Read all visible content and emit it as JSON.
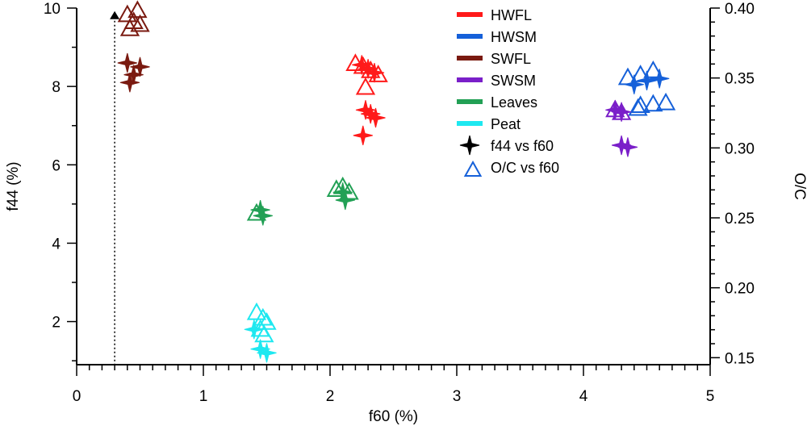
{
  "chart_data": {
    "type": "scatter",
    "xlabel": "f60 (%)",
    "ylabel": "f44 (%)",
    "y2label": "O/C",
    "xlim": [
      0,
      5
    ],
    "ylim": [
      0.9,
      10
    ],
    "y2lim": [
      0.145,
      0.4
    ],
    "xticks": [
      0,
      1,
      2,
      3,
      4,
      5
    ],
    "yticks": [
      2,
      4,
      6,
      8,
      10
    ],
    "y2ticks": [
      0.15,
      0.2,
      0.25,
      0.3,
      0.35,
      0.4
    ],
    "y2tick_labels": [
      "0.15",
      "0.20",
      "0.25",
      "0.30",
      "0.35",
      "0.40"
    ],
    "grid": false,
    "legend_position": "top-right",
    "reference_line": {
      "x": 0.3,
      "y_top": 9.8,
      "style": "dotted"
    },
    "series": [
      {
        "name": "HWFL",
        "color": "#ff1a1a",
        "f44_vs_f60": [
          [
            2.25,
            8.55
          ],
          [
            2.3,
            8.45
          ],
          [
            2.35,
            8.35
          ],
          [
            2.28,
            7.4
          ],
          [
            2.32,
            7.3
          ],
          [
            2.36,
            7.2
          ],
          [
            2.26,
            6.75
          ]
        ],
        "oc_vs_f60": [
          [
            2.2,
            0.36
          ],
          [
            2.26,
            0.358
          ],
          [
            2.32,
            0.355
          ],
          [
            2.38,
            0.352
          ],
          [
            2.28,
            0.343
          ]
        ]
      },
      {
        "name": "HWSM",
        "color": "#1560d9",
        "f44_vs_f60": [
          [
            4.4,
            8.05
          ],
          [
            4.5,
            8.15
          ],
          [
            4.6,
            8.2
          ]
        ],
        "oc_vs_f60": [
          [
            4.35,
            0.35
          ],
          [
            4.45,
            0.352
          ],
          [
            4.55,
            0.355
          ],
          [
            4.45,
            0.33
          ],
          [
            4.55,
            0.331
          ],
          [
            4.65,
            0.332
          ],
          [
            4.43,
            0.328
          ]
        ]
      },
      {
        "name": "SWFL",
        "color": "#7a1a10",
        "f44_vs_f60": [
          [
            0.4,
            8.6
          ],
          [
            0.45,
            8.3
          ],
          [
            0.5,
            8.5
          ],
          [
            0.42,
            8.1
          ]
        ],
        "oc_vs_f60": [
          [
            0.4,
            0.395
          ],
          [
            0.45,
            0.39
          ],
          [
            0.5,
            0.388
          ],
          [
            0.42,
            0.385
          ],
          [
            0.48,
            0.398
          ]
        ]
      },
      {
        "name": "SWSM",
        "color": "#7a1fc9",
        "f44_vs_f60": [
          [
            4.25,
            7.4
          ],
          [
            4.3,
            7.35
          ],
          [
            4.3,
            6.5
          ],
          [
            4.35,
            6.45
          ]
        ],
        "oc_vs_f60": [
          [
            4.25,
            0.327
          ],
          [
            4.3,
            0.325
          ]
        ]
      },
      {
        "name": "Leaves",
        "color": "#22a055",
        "f44_vs_f60": [
          [
            1.45,
            4.85
          ],
          [
            1.47,
            4.7
          ],
          [
            2.1,
            5.3
          ],
          [
            2.12,
            5.1
          ]
        ],
        "oc_vs_f60": [
          [
            1.42,
            0.253
          ],
          [
            2.05,
            0.27
          ],
          [
            2.1,
            0.272
          ],
          [
            2.15,
            0.268
          ]
        ]
      },
      {
        "name": "Peat",
        "color": "#1ee8f0",
        "f44_vs_f60": [
          [
            1.45,
            1.3
          ],
          [
            1.5,
            1.2
          ],
          [
            1.4,
            1.8
          ]
        ],
        "oc_vs_f60": [
          [
            1.42,
            0.182
          ],
          [
            1.47,
            0.178
          ],
          [
            1.5,
            0.175
          ],
          [
            1.45,
            0.17
          ],
          [
            1.48,
            0.166
          ]
        ]
      }
    ],
    "legend_markers": [
      {
        "name": "f44 vs f60"
      },
      {
        "name": "O/C vs f60"
      }
    ]
  }
}
